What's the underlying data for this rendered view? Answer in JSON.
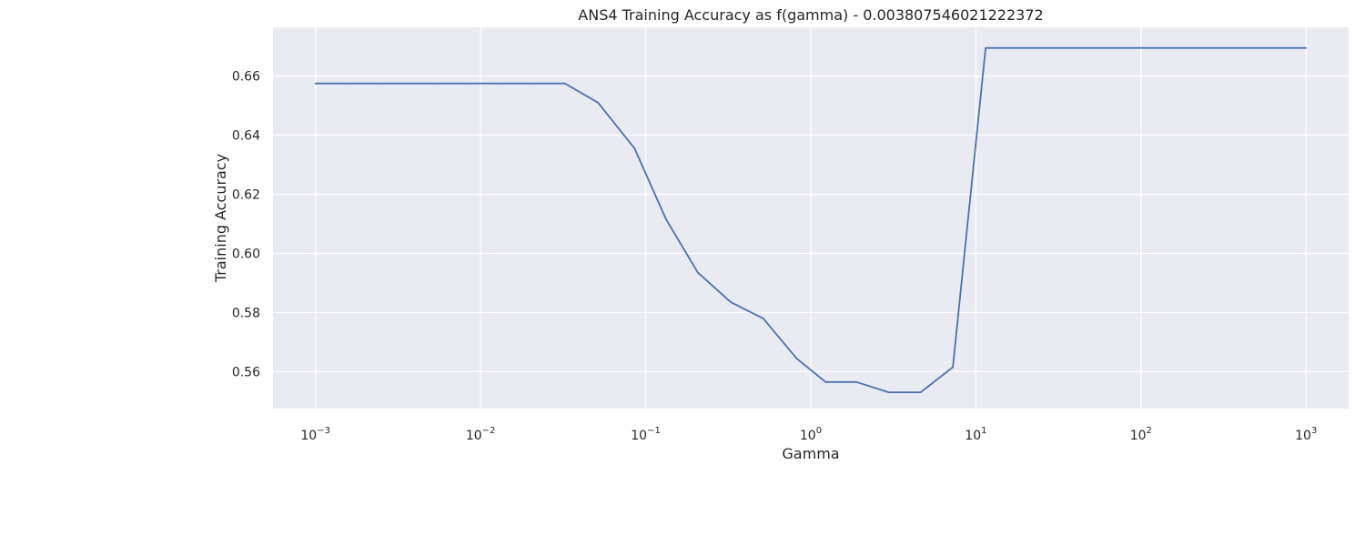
{
  "chart_data": {
    "type": "line",
    "title": "ANS4 Training Accuracy as f(gamma) - 0.003807546021222372",
    "xlabel": "Gamma",
    "ylabel": "Training Accuracy",
    "x_scale": "log",
    "xlim": [
      0.000553,
      1810
    ],
    "ylim": [
      0.5475,
      0.6765
    ],
    "grid": true,
    "x_ticks": [
      {
        "base": "10",
        "exp": "−3",
        "value": 0.001
      },
      {
        "base": "10",
        "exp": "−2",
        "value": 0.01
      },
      {
        "base": "10",
        "exp": "−1",
        "value": 0.1
      },
      {
        "base": "10",
        "exp": "0",
        "value": 1
      },
      {
        "base": "10",
        "exp": "1",
        "value": 10
      },
      {
        "base": "10",
        "exp": "2",
        "value": 100
      },
      {
        "base": "10",
        "exp": "3",
        "value": 1000
      }
    ],
    "y_ticks": [
      "0.56",
      "0.58",
      "0.60",
      "0.62",
      "0.64",
      "0.66"
    ],
    "series": [
      {
        "color": "#4c72b0",
        "x": [
          0.001,
          0.0015,
          0.0024,
          0.0036,
          0.0055,
          0.0085,
          0.013,
          0.0207,
          0.0324,
          0.0515,
          0.0857,
          0.133,
          0.207,
          0.328,
          0.515,
          0.82,
          1.23,
          1.89,
          2.97,
          4.63,
          7.25,
          11.46,
          1000
        ],
        "y": [
          0.6575,
          0.6575,
          0.6575,
          0.6575,
          0.6575,
          0.6575,
          0.6575,
          0.6575,
          0.6575,
          0.651,
          0.6355,
          0.6115,
          0.5935,
          0.5835,
          0.578,
          0.5645,
          0.5565,
          0.5565,
          0.553,
          0.553,
          0.5615,
          0.6695,
          0.6695
        ]
      }
    ]
  }
}
